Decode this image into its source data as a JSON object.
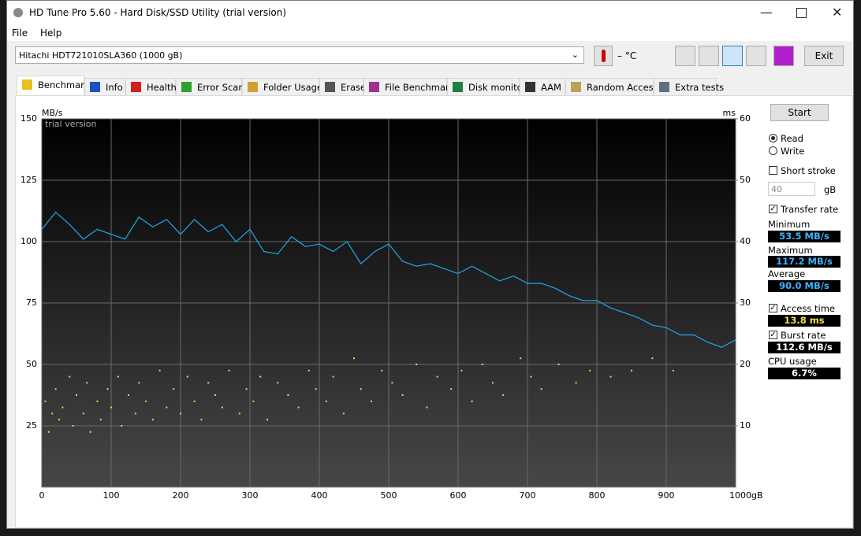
{
  "window": {
    "title": "HD Tune Pro 5.60 - Hard Disk/SSD Utility (trial version)"
  },
  "menu": [
    "File",
    "Help"
  ],
  "toolbar": {
    "drive": "Hitachi HDT721010SLA360 (1000 gB)",
    "temperature": "– °C",
    "exit": "Exit"
  },
  "tabs": [
    "Benchmark",
    "Info",
    "Health",
    "Error Scan",
    "Folder Usage",
    "Erase",
    "File Benchmark",
    "Disk monitor",
    "AAM",
    "Random Access",
    "Extra tests"
  ],
  "chart_data": {
    "type": "line",
    "annotation": "trial version",
    "ylabel": "MB/s",
    "y2label": "ms",
    "xlim": [
      0,
      1000
    ],
    "xticks": [
      0,
      100,
      200,
      300,
      400,
      500,
      600,
      700,
      800,
      900,
      {
        "value": 1000,
        "label": "1000gB"
      }
    ],
    "ylim": [
      0,
      150
    ],
    "yticks": [
      25,
      50,
      75,
      100,
      125,
      150
    ],
    "y2lim": [
      0,
      60
    ],
    "y2ticks": [
      10,
      20,
      30,
      40,
      50,
      60
    ],
    "grid": true,
    "series": [
      {
        "name": "Transfer rate",
        "color": "#1e9fe0",
        "x": [
          0,
          20,
          40,
          60,
          80,
          100,
          120,
          140,
          160,
          180,
          200,
          220,
          240,
          260,
          280,
          300,
          320,
          340,
          360,
          380,
          400,
          420,
          440,
          460,
          480,
          500,
          520,
          540,
          560,
          580,
          600,
          620,
          640,
          660,
          680,
          700,
          720,
          740,
          760,
          780,
          800,
          820,
          840,
          860,
          880,
          900,
          920,
          940,
          960,
          980,
          1000
        ],
        "values": [
          105,
          112,
          107,
          101,
          105,
          103,
          101,
          110,
          106,
          109,
          103,
          109,
          104,
          107,
          100,
          105,
          96,
          95,
          102,
          98,
          99,
          96,
          100,
          91,
          96,
          99,
          92,
          90,
          91,
          89,
          87,
          90,
          87,
          84,
          86,
          83,
          83,
          81,
          78,
          76,
          76,
          73,
          71,
          69,
          66,
          65,
          62,
          62,
          59,
          57,
          60
        ]
      },
      {
        "name": "Access time",
        "type": "scatter",
        "axis": "y2",
        "color": "#e0e040",
        "x": [
          5,
          10,
          15,
          20,
          25,
          30,
          40,
          45,
          50,
          60,
          65,
          70,
          80,
          85,
          95,
          100,
          110,
          115,
          125,
          135,
          140,
          150,
          160,
          170,
          180,
          190,
          200,
          210,
          220,
          230,
          240,
          250,
          260,
          270,
          285,
          295,
          305,
          315,
          325,
          340,
          355,
          370,
          385,
          395,
          410,
          420,
          435,
          450,
          460,
          475,
          490,
          505,
          520,
          540,
          555,
          570,
          590,
          605,
          620,
          635,
          650,
          665,
          690,
          705,
          720,
          745,
          770,
          790,
          820,
          850,
          880,
          910
        ],
        "values": [
          14,
          9,
          12,
          16,
          11,
          13,
          18,
          10,
          15,
          12,
          17,
          9,
          14,
          11,
          16,
          13,
          18,
          10,
          15,
          12,
          17,
          14,
          11,
          19,
          13,
          16,
          12,
          18,
          14,
          11,
          17,
          15,
          13,
          19,
          12,
          16,
          14,
          18,
          11,
          17,
          15,
          13,
          19,
          16,
          14,
          18,
          12,
          21,
          16,
          14,
          19,
          17,
          15,
          20,
          13,
          18,
          16,
          19,
          14,
          20,
          17,
          15,
          21,
          18,
          16,
          20,
          17,
          19,
          18,
          19,
          21,
          19
        ]
      }
    ]
  },
  "panel": {
    "start": "Start",
    "read": "Read",
    "write": "Write",
    "short_stroke": "Short stroke",
    "short_stroke_size": "40",
    "short_stroke_unit": "gB",
    "minimum_label": "Minimum",
    "minimum": "53.5 MB/s",
    "maximum_label": "Maximum",
    "maximum": "117.2 MB/s",
    "average_label": "Average",
    "average": "90.0 MB/s",
    "access_time": "13.8 ms",
    "burst_rate_label": "Burst rate",
    "burst_rate": "112.6 MB/s",
    "cpu_usage_label": "CPU usage",
    "cpu_usage": "6.7%"
  }
}
